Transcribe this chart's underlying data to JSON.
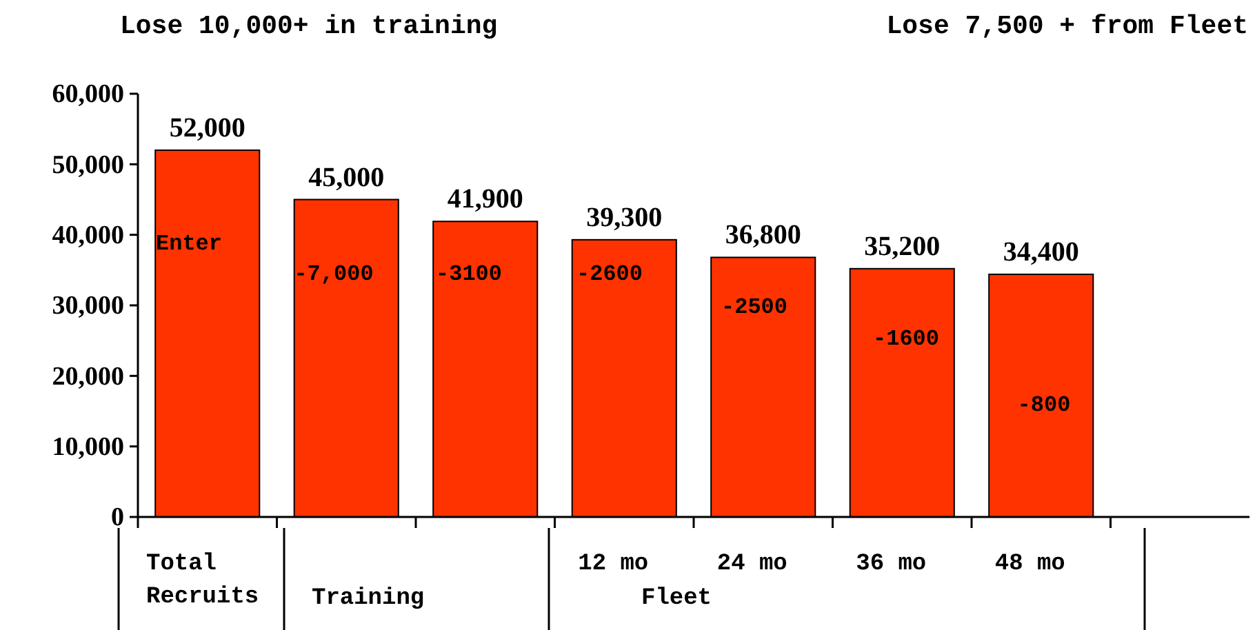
{
  "chart_data": {
    "type": "bar",
    "categories": [
      "Total Recruits",
      null,
      null,
      "12 mo",
      "24 mo",
      "36 mo",
      "48 mo",
      null
    ],
    "values": [
      52000,
      45000,
      41900,
      39300,
      36800,
      35200,
      34400,
      null
    ],
    "color": "#ff3300",
    "ylim": [
      0,
      60000
    ],
    "yticks": [
      {
        "value": 0,
        "label": "0"
      },
      {
        "value": 10000,
        "label": "10,000"
      },
      {
        "value": 20000,
        "label": "20,000"
      },
      {
        "value": 30000,
        "label": "30,000"
      },
      {
        "value": 40000,
        "label": "40,000"
      },
      {
        "value": 50000,
        "label": "50,000"
      },
      {
        "value": 60000,
        "label": "60,000"
      }
    ],
    "value_labels": [
      "52,000",
      "45,000",
      "41,900",
      "39,300",
      "36,800",
      "35,200",
      "34,400",
      null
    ],
    "grid": false,
    "annotations": [
      "Lose 10,000+ in training",
      "Lose 7,500 + from Fleet",
      "Enter",
      "-7,000",
      "-3100",
      "-2600",
      "-2500",
      "-1600",
      "-800",
      "Training",
      "Fleet"
    ]
  }
}
